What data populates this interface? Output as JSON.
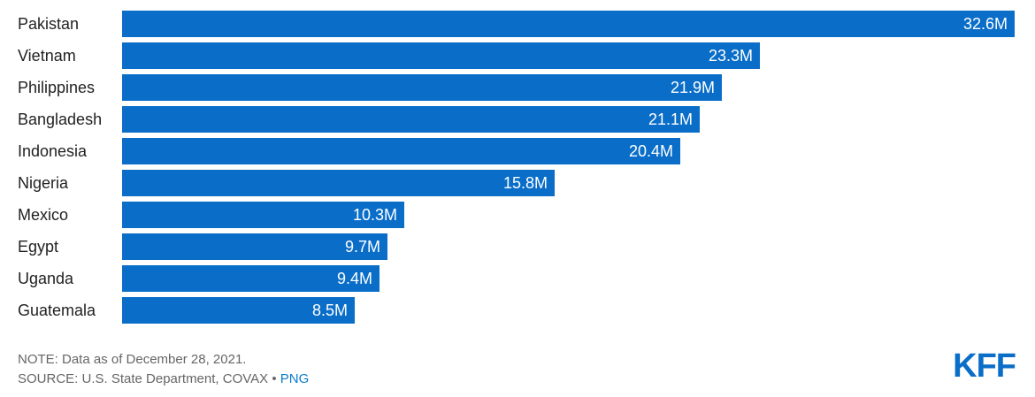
{
  "chart_data": {
    "type": "bar",
    "orientation": "horizontal",
    "categories": [
      "Pakistan",
      "Vietnam",
      "Philippines",
      "Bangladesh",
      "Indonesia",
      "Nigeria",
      "Mexico",
      "Egypt",
      "Uganda",
      "Guatemala"
    ],
    "values": [
      32.6,
      23.3,
      21.9,
      21.1,
      20.4,
      15.8,
      10.3,
      9.7,
      9.4,
      8.5
    ],
    "value_labels": [
      "32.6M",
      "23.3M",
      "21.9M",
      "21.1M",
      "20.4M",
      "15.8M",
      "10.3M",
      "9.7M",
      "9.4M",
      "8.5M"
    ],
    "unit": "M",
    "xlim": [
      0,
      32.6
    ],
    "grid": false,
    "bar_color": "#0a6ec9"
  },
  "footer": {
    "note": "NOTE: Data as of December 28, 2021.",
    "source": "SOURCE: U.S. State Department, COVAX",
    "separator": " • ",
    "png_link": "PNG"
  },
  "logo": {
    "text": "KFF",
    "color": "#0a6ec9"
  }
}
